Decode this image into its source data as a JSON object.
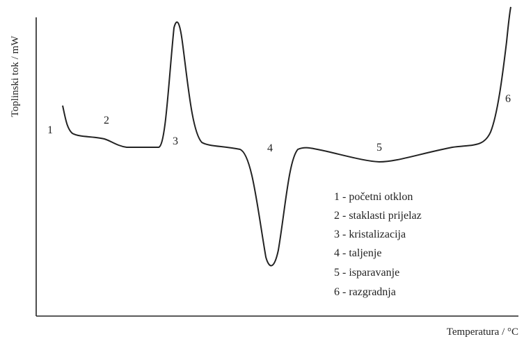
{
  "axes": {
    "y_label": "Toplinski tok / mW",
    "x_label": "Temperatura / °C"
  },
  "peak_labels": [
    "1",
    "2",
    "3",
    "4",
    "5",
    "6"
  ],
  "legend": [
    "1 - početni otklon",
    "2 - staklasti prijelaz",
    "3 - kristalizacija",
    "4 - taljenje",
    "5 - isparavanje",
    "6 - razgradnja"
  ]
}
